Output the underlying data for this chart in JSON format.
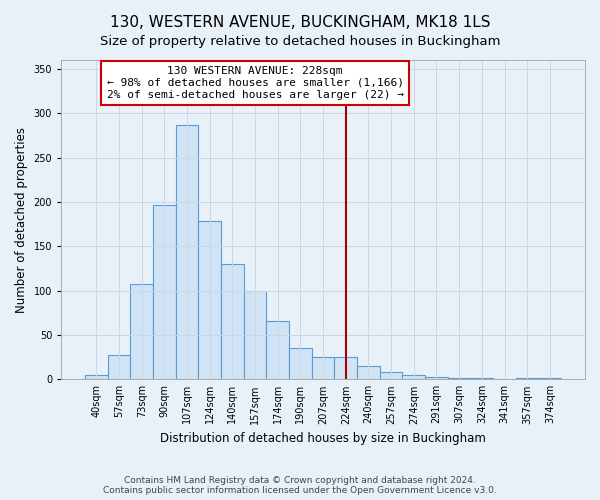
{
  "title": "130, WESTERN AVENUE, BUCKINGHAM, MK18 1LS",
  "subtitle": "Size of property relative to detached houses in Buckingham",
  "xlabel": "Distribution of detached houses by size in Buckingham",
  "ylabel": "Number of detached properties",
  "categories": [
    "40sqm",
    "57sqm",
    "73sqm",
    "90sqm",
    "107sqm",
    "124sqm",
    "140sqm",
    "157sqm",
    "174sqm",
    "190sqm",
    "207sqm",
    "224sqm",
    "240sqm",
    "257sqm",
    "274sqm",
    "291sqm",
    "307sqm",
    "324sqm",
    "341sqm",
    "357sqm",
    "374sqm"
  ],
  "values": [
    5,
    27,
    108,
    197,
    287,
    178,
    130,
    100,
    66,
    35,
    25,
    25,
    15,
    8,
    5,
    3,
    1,
    1,
    0,
    1,
    1
  ],
  "bar_color": "#d0e4f5",
  "bar_edge_color": "#5b9bd5",
  "highlight_index": 11,
  "highlight_line_color": "#aa0000",
  "annotation_box_facecolor": "#ffffff",
  "annotation_box_edgecolor": "#cc0000",
  "annotation_text": "130 WESTERN AVENUE: 228sqm\n← 98% of detached houses are smaller (1,166)\n2% of semi-detached houses are larger (22) →",
  "annotation_fontsize": 8,
  "ylim": [
    0,
    360
  ],
  "yticks": [
    0,
    50,
    100,
    150,
    200,
    250,
    300,
    350
  ],
  "grid_color": "#c8d8e8",
  "background_color": "#e8f0f8",
  "footer": "Contains HM Land Registry data © Crown copyright and database right 2024.\nContains public sector information licensed under the Open Government Licence v3.0.",
  "title_fontsize": 11,
  "subtitle_fontsize": 9.5,
  "xlabel_fontsize": 8.5,
  "ylabel_fontsize": 8.5,
  "tick_fontsize": 7,
  "footer_fontsize": 6.5
}
